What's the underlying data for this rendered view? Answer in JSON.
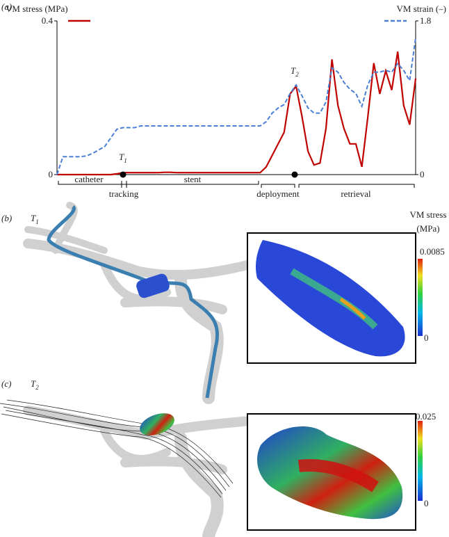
{
  "chart_data": {
    "type": "line",
    "panel_label": "(a)",
    "series": [
      {
        "name": "VM stress (MPa)",
        "color": "#c00000",
        "dash": false,
        "values": [
          0,
          0,
          0,
          0,
          0,
          0,
          0,
          0,
          0,
          0,
          0.002,
          0.005,
          0.005,
          0.005,
          0.005,
          0.005,
          0.005,
          0.005,
          0.006,
          0.006,
          0.005,
          0.005,
          0.005,
          0.005,
          0.005,
          0.005,
          0.005,
          0.005,
          0.005,
          0.005,
          0.005,
          0.005,
          0.005,
          0.005,
          0.005,
          0.02,
          0.05,
          0.08,
          0.11,
          0.21,
          0.23,
          0.15,
          0.06,
          0.025,
          0.03,
          0.12,
          0.3,
          0.18,
          0.12,
          0.08,
          0.08,
          0.02,
          0.15,
          0.29,
          0.21,
          0.27,
          0.22,
          0.32,
          0.18,
          0.13,
          0.25
        ]
      },
      {
        "name": "VM strain (–)",
        "color": "#4a7fd4",
        "dash": true,
        "axis": "y2",
        "values": [
          0,
          0.21,
          0.21,
          0.21,
          0.21,
          0.22,
          0.25,
          0.29,
          0.33,
          0.43,
          0.53,
          0.55,
          0.55,
          0.55,
          0.57,
          0.57,
          0.57,
          0.57,
          0.57,
          0.57,
          0.57,
          0.57,
          0.57,
          0.57,
          0.57,
          0.57,
          0.57,
          0.57,
          0.57,
          0.57,
          0.57,
          0.57,
          0.57,
          0.57,
          0.57,
          0.62,
          0.72,
          0.78,
          0.82,
          0.95,
          1.05,
          0.92,
          0.78,
          0.72,
          0.72,
          0.85,
          1.25,
          1.2,
          1.08,
          1.0,
          0.95,
          0.8,
          1.05,
          1.2,
          1.2,
          1.22,
          1.2,
          1.3,
          1.22,
          1.1,
          1.6
        ]
      }
    ],
    "ylim": [
      0,
      0.4
    ],
    "yticks": [
      0,
      0.4
    ],
    "y2lim": [
      0,
      1.8
    ],
    "y2ticks": [
      0,
      1.8
    ],
    "markers": [
      {
        "text": "T",
        "sub": "1"
      },
      {
        "text": "T",
        "sub": "2"
      }
    ],
    "phases": [
      "catheter",
      "tracking",
      "stent",
      "deployment",
      "retrieval"
    ]
  },
  "panels": [
    {
      "label": "(b)",
      "time": {
        "text": "T",
        "sub": "1"
      },
      "colorbar_title": [
        "VM stress",
        "(MPa)"
      ],
      "colorbar_max": "0.0085",
      "colorbar_min": "0"
    },
    {
      "label": "(c)",
      "time": {
        "text": "T",
        "sub": "2"
      },
      "colorbar_max": "0.025",
      "colorbar_min": "0"
    }
  ]
}
